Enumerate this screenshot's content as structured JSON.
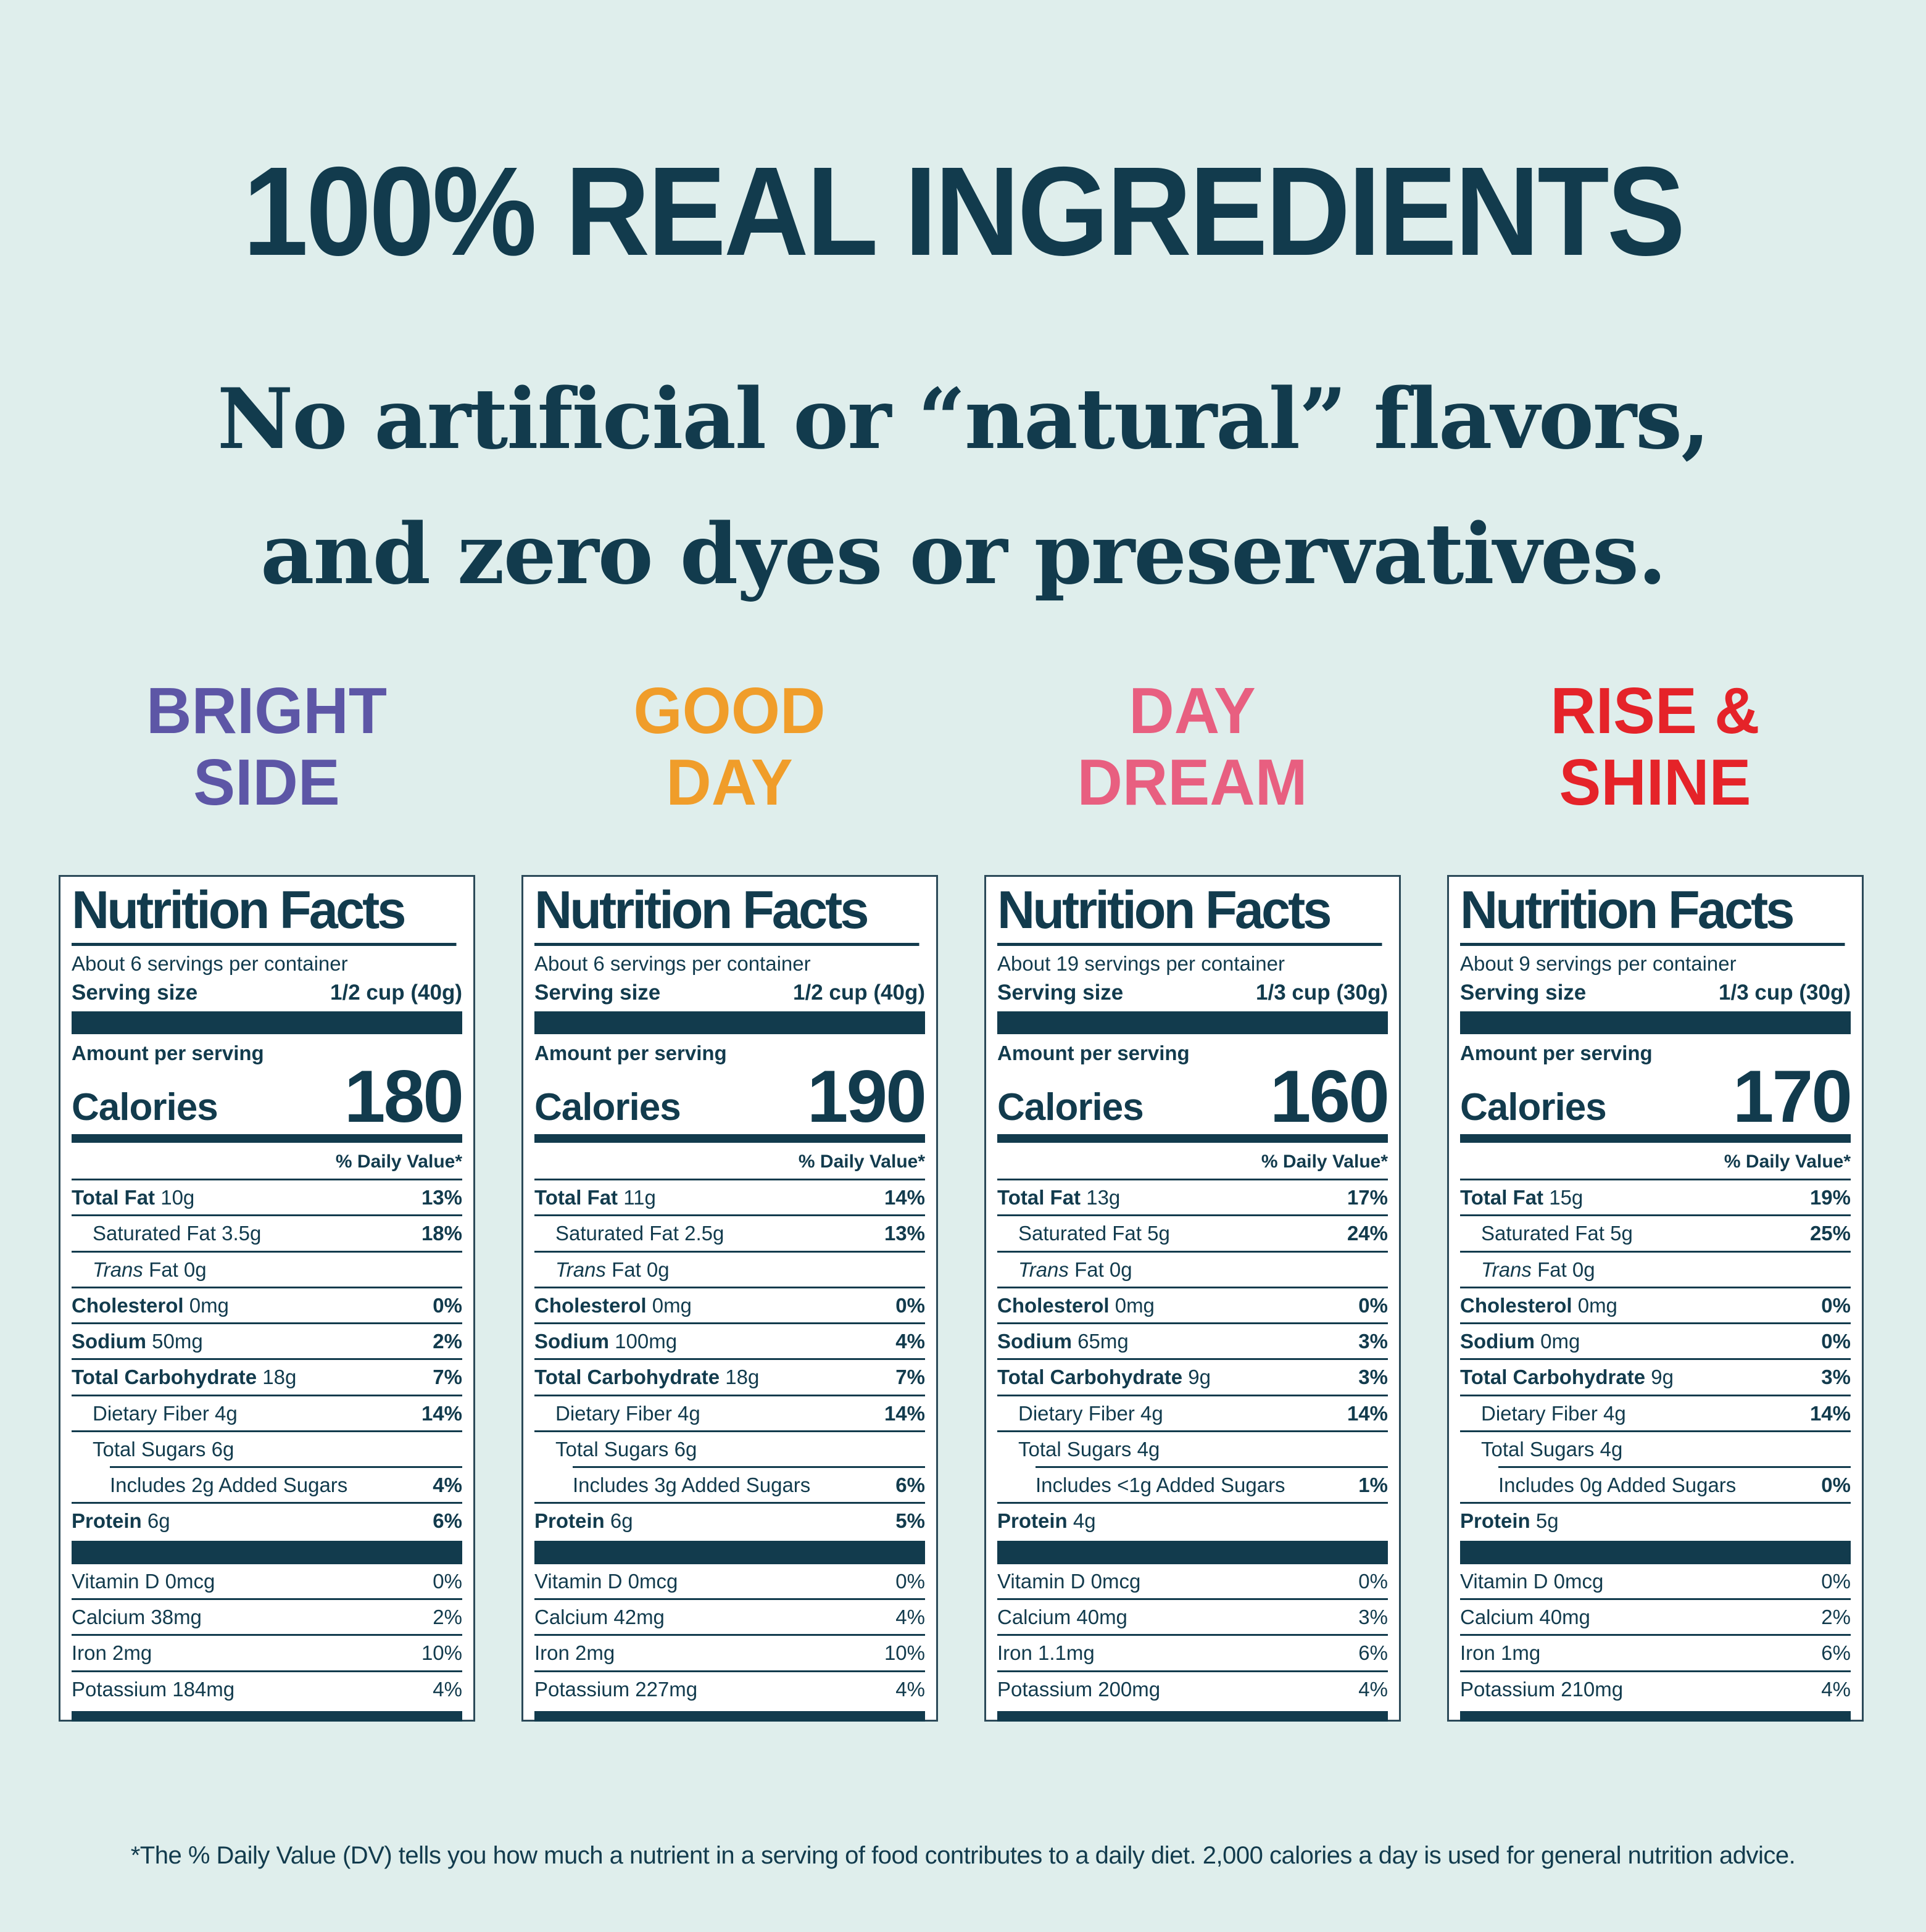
{
  "page": {
    "background": "#dfeeec",
    "text_color": "#123b4d",
    "title": "100% REAL INGREDIENTS",
    "subtitle_line1": "No artificial or “natural” flavors,",
    "subtitle_line2": "and zero dyes or preservatives.",
    "footnote": "*The % Daily Value (DV) tells you how much a nutrient in a serving of food contributes to a daily diet. 2,000 calories a day is used for general nutrition advice."
  },
  "flavors": [
    {
      "name_line1": "BRIGHT",
      "name_line2": "SIDE",
      "color": "#5d56a6"
    },
    {
      "name_line1": "GOOD",
      "name_line2": "DAY",
      "color": "#f09d2a"
    },
    {
      "name_line1": "DAY",
      "name_line2": "DREAM",
      "color": "#e85f80"
    },
    {
      "name_line1": "RISE &",
      "name_line2": "SHINE",
      "color": "#e52329"
    }
  ],
  "labels": [
    {
      "title": "Nutrition Facts",
      "servings": "About 6 servings per container",
      "serving_size_label": "Serving size",
      "serving_size_value": "1/2 cup (40g)",
      "amount_per_serving": "Amount per serving",
      "calories_label": "Calories",
      "calories_value": "180",
      "daily_value_header": "% Daily Value*",
      "rows": [
        {
          "bold": "Total Fat",
          "rest": " 10g",
          "pct": "13%",
          "pct_bold": true,
          "indent": 0
        },
        {
          "rest": "Saturated Fat 3.5g",
          "pct": "18%",
          "pct_bold": true,
          "indent": 1
        },
        {
          "italic": "Trans",
          "rest": " Fat 0g",
          "indent": 1
        },
        {
          "bold": "Cholesterol",
          "rest": " 0mg",
          "pct": "0%",
          "pct_bold": true,
          "indent": 0
        },
        {
          "bold": "Sodium",
          "rest": " 50mg",
          "pct": "2%",
          "pct_bold": true,
          "indent": 0
        },
        {
          "bold": "Total Carbohydrate",
          "rest": " 18g",
          "pct": "7%",
          "pct_bold": true,
          "indent": 0
        },
        {
          "rest": "Dietary Fiber 4g",
          "pct": "14%",
          "pct_bold": true,
          "indent": 1
        },
        {
          "rest": "Total Sugars 6g",
          "indent": 1
        },
        {
          "rest": "Includes 2g Added Sugars",
          "pct": "4%",
          "pct_bold": true,
          "indent": 2,
          "rule_indent": true
        },
        {
          "bold": "Protein",
          "rest": " 6g",
          "pct": "6%",
          "pct_bold": true,
          "indent": 0
        }
      ],
      "vitamins": [
        {
          "text": "Vitamin D 0mcg",
          "pct": "0%"
        },
        {
          "text": "Calcium 38mg",
          "pct": "2%"
        },
        {
          "text": "Iron 2mg",
          "pct": "10%"
        },
        {
          "text": "Potassium 184mg",
          "pct": "4%"
        }
      ]
    },
    {
      "title": "Nutrition Facts",
      "servings": "About 6 servings per container",
      "serving_size_label": "Serving size",
      "serving_size_value": "1/2 cup (40g)",
      "amount_per_serving": "Amount per serving",
      "calories_label": "Calories",
      "calories_value": "190",
      "daily_value_header": "% Daily Value*",
      "rows": [
        {
          "bold": "Total Fat",
          "rest": " 11g",
          "pct": "14%",
          "pct_bold": true,
          "indent": 0
        },
        {
          "rest": "Saturated Fat 2.5g",
          "pct": "13%",
          "pct_bold": true,
          "indent": 1
        },
        {
          "italic": "Trans",
          "rest": " Fat 0g",
          "indent": 1
        },
        {
          "bold": "Cholesterol",
          "rest": " 0mg",
          "pct": "0%",
          "pct_bold": true,
          "indent": 0
        },
        {
          "bold": "Sodium",
          "rest": " 100mg",
          "pct": "4%",
          "pct_bold": true,
          "indent": 0
        },
        {
          "bold": "Total Carbohydrate",
          "rest": " 18g",
          "pct": "7%",
          "pct_bold": true,
          "indent": 0
        },
        {
          "rest": "Dietary Fiber 4g",
          "pct": "14%",
          "pct_bold": true,
          "indent": 1
        },
        {
          "rest": "Total Sugars 6g",
          "indent": 1
        },
        {
          "rest": "Includes 3g Added Sugars",
          "pct": "6%",
          "pct_bold": true,
          "indent": 2,
          "rule_indent": true
        },
        {
          "bold": "Protein",
          "rest": " 6g",
          "pct": "5%",
          "pct_bold": true,
          "indent": 0
        }
      ],
      "vitamins": [
        {
          "text": "Vitamin D 0mcg",
          "pct": "0%"
        },
        {
          "text": "Calcium 42mg",
          "pct": "4%"
        },
        {
          "text": "Iron 2mg",
          "pct": "10%"
        },
        {
          "text": "Potassium 227mg",
          "pct": "4%"
        }
      ]
    },
    {
      "title": "Nutrition Facts",
      "servings": "About 19 servings per container",
      "serving_size_label": "Serving size",
      "serving_size_value": "1/3 cup (30g)",
      "amount_per_serving": "Amount per serving",
      "calories_label": "Calories",
      "calories_value": "160",
      "daily_value_header": "% Daily Value*",
      "rows": [
        {
          "bold": "Total Fat",
          "rest": " 13g",
          "pct": "17%",
          "pct_bold": true,
          "indent": 0
        },
        {
          "rest": "Saturated Fat 5g",
          "pct": "24%",
          "pct_bold": true,
          "indent": 1
        },
        {
          "italic": "Trans",
          "rest": " Fat 0g",
          "indent": 1
        },
        {
          "bold": "Cholesterol",
          "rest": " 0mg",
          "pct": "0%",
          "pct_bold": true,
          "indent": 0
        },
        {
          "bold": "Sodium",
          "rest": " 65mg",
          "pct": "3%",
          "pct_bold": true,
          "indent": 0
        },
        {
          "bold": "Total Carbohydrate",
          "rest": " 9g",
          "pct": "3%",
          "pct_bold": true,
          "indent": 0
        },
        {
          "rest": "Dietary Fiber 4g",
          "pct": "14%",
          "pct_bold": true,
          "indent": 1
        },
        {
          "rest": "Total Sugars 4g",
          "indent": 1
        },
        {
          "rest": "Includes <1g Added Sugars",
          "pct": "1%",
          "pct_bold": true,
          "indent": 2,
          "rule_indent": true
        },
        {
          "bold": "Protein",
          "rest": " 4g",
          "indent": 0
        }
      ],
      "vitamins": [
        {
          "text": "Vitamin D 0mcg",
          "pct": "0%"
        },
        {
          "text": "Calcium 40mg",
          "pct": "3%"
        },
        {
          "text": "Iron 1.1mg",
          "pct": "6%"
        },
        {
          "text": "Potassium 200mg",
          "pct": "4%"
        }
      ]
    },
    {
      "title": "Nutrition Facts",
      "servings": "About 9 servings per container",
      "serving_size_label": "Serving size",
      "serving_size_value": "1/3 cup (30g)",
      "amount_per_serving": "Amount per serving",
      "calories_label": "Calories",
      "calories_value": "170",
      "daily_value_header": "% Daily Value*",
      "rows": [
        {
          "bold": "Total Fat",
          "rest": " 15g",
          "pct": "19%",
          "pct_bold": true,
          "indent": 0
        },
        {
          "rest": "Saturated Fat 5g",
          "pct": "25%",
          "pct_bold": true,
          "indent": 1
        },
        {
          "italic": "Trans",
          "rest": " Fat 0g",
          "indent": 1
        },
        {
          "bold": "Cholesterol",
          "rest": " 0mg",
          "pct": "0%",
          "pct_bold": true,
          "indent": 0
        },
        {
          "bold": "Sodium",
          "rest": " 0mg",
          "pct": "0%",
          "pct_bold": true,
          "indent": 0
        },
        {
          "bold": "Total Carbohydrate",
          "rest": " 9g",
          "pct": "3%",
          "pct_bold": true,
          "indent": 0
        },
        {
          "rest": "Dietary Fiber 4g",
          "pct": "14%",
          "pct_bold": true,
          "indent": 1
        },
        {
          "rest": "Total Sugars 4g",
          "indent": 1
        },
        {
          "rest": "Includes 0g Added Sugars",
          "pct": "0%",
          "pct_bold": true,
          "indent": 2,
          "rule_indent": true
        },
        {
          "bold": "Protein",
          "rest": " 5g",
          "indent": 0
        }
      ],
      "vitamins": [
        {
          "text": "Vitamin D 0mcg",
          "pct": "0%"
        },
        {
          "text": "Calcium 40mg",
          "pct": "2%"
        },
        {
          "text": "Iron 1mg",
          "pct": "6%"
        },
        {
          "text": "Potassium 210mg",
          "pct": "4%"
        }
      ]
    }
  ]
}
